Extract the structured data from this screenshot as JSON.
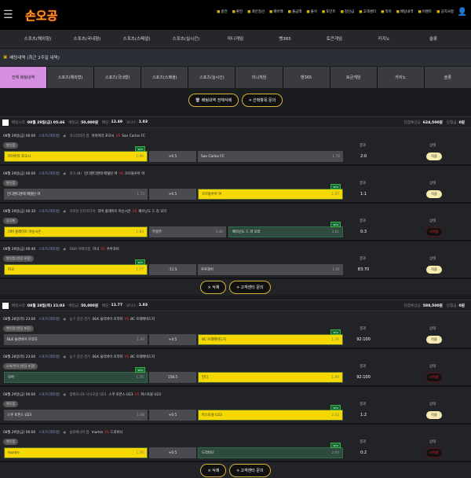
{
  "header": {
    "logo": "손오공",
    "links": [
      "충전",
      "환전",
      "개인정산",
      "페이백",
      "출금액",
      "출석",
      "포인트",
      "정산금",
      "고객센터",
      "쪽지",
      "배팅내역",
      "이벤트",
      "공지사항"
    ]
  },
  "nav": [
    "스포츠(해외형)",
    "스포츠(국내형)",
    "스포츠(스페셜)",
    "스포츠(실시간)",
    "미니게임",
    "벳365",
    "토큰게임",
    "카지노",
    "슬롯"
  ],
  "title": "배팅내역 (최근 2주일 내역)",
  "tabs": [
    "전체 배팅내역",
    "스포츠(해외형)",
    "스포츠(국내형)",
    "스포츠(스페셜)",
    "스포츠(실시간)",
    "미니게임",
    "벳365",
    "토큰게임",
    "카지노",
    "슬롯"
  ],
  "actions": {
    "delete_all": "배팅내역 전체삭제",
    "inquire": "선택항목 문의"
  },
  "labels": {
    "result": "결과",
    "status": "상태",
    "vs": "VS",
    "win": "win",
    "delete": "× 삭제",
    "support": "고객센터 문의",
    "bet_time": "배팅시각 :",
    "bet_amount": "배팅금 :",
    "odds": "배당 :",
    "bonus": "보너스 :",
    "expected": "당첨예상금 :",
    "won": "당첨금 :"
  },
  "slips": [
    {
      "time": "08월 29일(금) 05:46",
      "amount": "50,000원",
      "odds": "12.49",
      "bonus": "1.03",
      "expected": "624,500원",
      "won": "0원",
      "rows": [
        {
          "date": "08월 29일(금) 06:00",
          "sport": "스포츠(해외형)",
          "league": "코스타리카 컵",
          "home": "카이아라 포오시",
          "away": "San Carlos FC",
          "market": "핸디캡",
          "h": "카이아라 포오시",
          "ho": "1.90",
          "mid": "+0.5",
          "a": "San Carlos FC",
          "ao": "1.78",
          "sel": "h",
          "win": "h",
          "score": "2:0",
          "status": "적중",
          "ok": true
        },
        {
          "date": "08월 29일(금) 06:00",
          "sport": "스포츠(해외형)",
          "league": "리가 (Ⅲ)",
          "home": "인디펜디엔테 메델린 여",
          "away": "코르돌루아 여",
          "market": "핸디캡",
          "h": "인디펜디엔테 메델린 여",
          "ho": "1.73",
          "mid": "+0.5",
          "a": "코르돌루아 여",
          "ao": "1.97",
          "sel": "a",
          "win": "a",
          "score": "1:1",
          "status": "적중",
          "ok": true
        },
        {
          "date": "08월 29일(금) 06:30",
          "sport": "스포츠(해외형)",
          "league": "디비성 인티미디아",
          "home": "리버 플레이트 아순시온",
          "away": "페르난도 드 라 모라",
          "market": "승무패",
          "h": "리버 플레이트 아순시온",
          "ho": "1.83",
          "mid": "무승부",
          "mo": "3.40",
          "a": "페르난도 드 라 모라",
          "ao": "3.81",
          "sel": "h",
          "win": "a",
          "score": "0:3",
          "status": "미적중",
          "ok": false
        },
        {
          "date": "08월 29일(금) 06:40",
          "sport": "스포츠(해외형)",
          "league": "FIBA 아메리컵",
          "home": "미국",
          "away": "우루과이",
          "market": "핸디캡 (연장 포함)",
          "h": "미국",
          "ho": "1.77",
          "mid": "-11.5",
          "a": "우루과이",
          "ao": "1.91",
          "sel": "h",
          "win": "h",
          "score": "83:70",
          "status": "적중",
          "ok": true
        }
      ]
    },
    {
      "time": "08월 28일(목) 21:03",
      "amount": "50,000원",
      "odds": "11.77",
      "bonus": "1.03",
      "expected": "588,500원",
      "won": "0원",
      "rows": [
        {
          "date": "08월 28일(목) 23:00",
          "sport": "스포츠(해외형)",
          "league": "농구 친선 경기",
          "home": "BLK 슬라비아 프라하",
          "away": "BC 프레메비드지",
          "market": "핸디캡 (연장 포함)",
          "h": "BLK 슬라비아 프라하",
          "ho": "1.93",
          "mid": "+4.5",
          "a": "BC 프레메비드지",
          "ao": "1.76",
          "sel": "a",
          "win": "a",
          "score": "92:100",
          "status": "적중",
          "ok": true
        },
        {
          "date": "08월 28일(목) 23:00",
          "sport": "스포츠(해외형)",
          "league": "농구 친선 경기",
          "home": "BLK 슬라비아 프라하",
          "away": "BC 프레메비드지",
          "market": "오버/언더 (연장 포함)",
          "h": "오버",
          "ho": "1.78",
          "mid": "158.5",
          "a": "언더",
          "ao": "1.89",
          "sel": "a",
          "win": "h",
          "score": "92:100",
          "status": "미적중",
          "ok": false
        },
        {
          "date": "08월 29일(금) 00:00",
          "sport": "스포츠(해외형)",
          "league": "캄페오나토 나시오날 U23",
          "home": "스쿠 포폰스 U23",
          "away": "파스토블 U23",
          "market": "핸디캡",
          "h": "스쿠 포폰스 U23",
          "ho": "1.68",
          "mid": "+0.5",
          "a": "파스토블 U23",
          "ao": "2.02",
          "sel": "a",
          "win": "a",
          "score": "1:2",
          "status": "적중",
          "ok": true
        },
        {
          "date": "08월 29일(금) 00:00",
          "sport": "스포츠(해외형)",
          "league": "슬로베니아 컵",
          "home": "martro",
          "away": "드라비나",
          "market": "핸디캡",
          "h": "martro",
          "ho": "1.78",
          "mid": "+0.5",
          "a": "드라비나",
          "ao": "2.00",
          "sel": "h",
          "win": "a",
          "score": "0:2",
          "status": "미적중",
          "ok": false
        }
      ]
    }
  ],
  "colors": {
    "selected": "#f5d800",
    "win_cell": "#2f4a3e",
    "tab_active": "#d58fe0",
    "accent": "#d4b437"
  }
}
